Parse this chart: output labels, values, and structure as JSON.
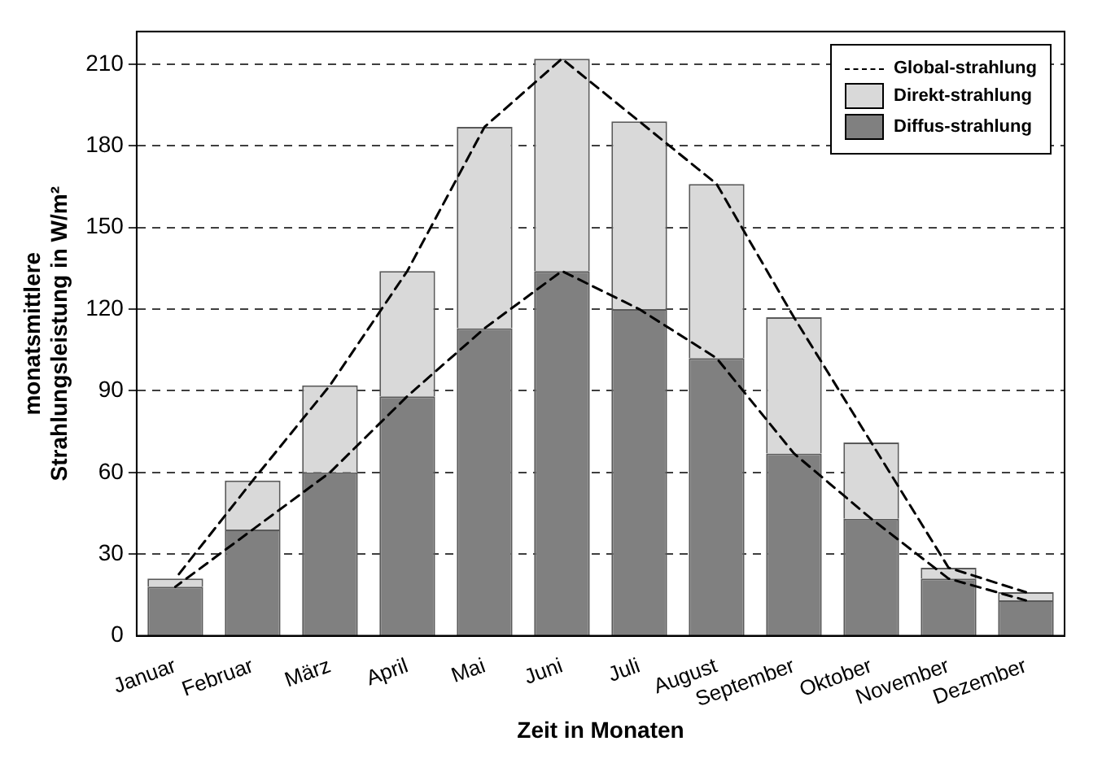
{
  "chart_data": {
    "type": "bar",
    "stacked": true,
    "xlabel": "Zeit in Monaten",
    "ylabel": "monatsmittlere Strahlungsleistung in W/m²",
    "categories": [
      "Januar",
      "Februar",
      "März",
      "April",
      "Mai",
      "Juni",
      "Juli",
      "August",
      "September",
      "Oktober",
      "November",
      "Dezember"
    ],
    "series": [
      {
        "name": "Diffus-strahlung",
        "color": "#808080",
        "values": [
          18,
          39,
          60,
          88,
          113,
          134,
          120,
          102,
          67,
          43,
          21,
          13
        ]
      },
      {
        "name": "Direkt-strahlung",
        "color": "#d9d9d9",
        "values": [
          3,
          18,
          32,
          46,
          74,
          78,
          69,
          64,
          50,
          28,
          4,
          3
        ]
      },
      {
        "name": "Global-strahlung",
        "type": "line",
        "color": "#000000",
        "line_style": "dashed",
        "values": [
          21,
          57,
          92,
          134,
          187,
          212,
          189,
          166,
          117,
          71,
          25,
          16
        ]
      },
      {
        "type": "line",
        "color": "#000000",
        "line_style": "dashed",
        "values": [
          18,
          39,
          60,
          88,
          113,
          134,
          120,
          102,
          67,
          43,
          21,
          13
        ]
      }
    ],
    "ylim": [
      0,
      222
    ],
    "yticks": [
      0,
      30,
      60,
      90,
      120,
      150,
      180,
      210
    ],
    "grid": "y",
    "legend": "top right",
    "marker": "none"
  }
}
